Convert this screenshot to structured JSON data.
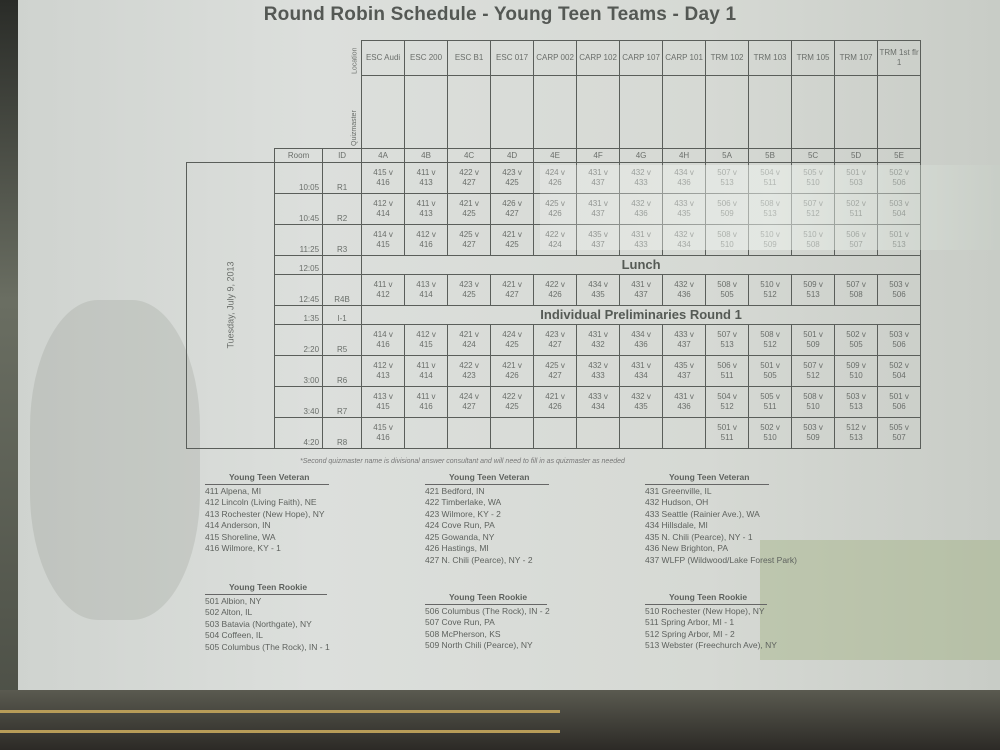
{
  "title": "Round Robin Schedule  - Young Teen Teams - Day 1",
  "corner_labels": {
    "location": "Location",
    "quizmaster": "Quizmaster",
    "room": "Room",
    "id": "ID"
  },
  "date_label": "Tuesday, July 9, 2013",
  "locations": [
    "ESC Audi",
    "ESC 200",
    "ESC B1",
    "ESC 017",
    "CARP 002",
    "CARP 102",
    "CARP 107",
    "CARP 101",
    "TRM 102",
    "TRM 103",
    "TRM 105",
    "TRM 107",
    "TRM 1st flr 1"
  ],
  "rooms": [
    "4A",
    "4B",
    "4C",
    "4D",
    "4E",
    "4F",
    "4G",
    "4H",
    "5A",
    "5B",
    "5C",
    "5D",
    "5E"
  ],
  "rows": [
    {
      "time": "10:05",
      "id": "R1",
      "games": [
        "415 v 416",
        "411 v 413",
        "422 v 427",
        "423 v 425",
        "424 v 426",
        "431 v 437",
        "432 v 433",
        "434 v 436",
        "507 v 513",
        "504 v 511",
        "505 v 510",
        "501 v 503",
        "502 v 506"
      ]
    },
    {
      "time": "10:45",
      "id": "R2",
      "games": [
        "412 v 414",
        "411 v 413",
        "421 v 425",
        "426 v 427",
        "425 v 426",
        "431 v 437",
        "432 v 436",
        "433 v 435",
        "506 v 509",
        "508 v 513",
        "507 v 512",
        "502 v 511",
        "503 v 504"
      ]
    },
    {
      "time": "11:25",
      "id": "R3",
      "games": [
        "414 v 415",
        "412 v 416",
        "425 v 427",
        "421 v 425",
        "422 v 424",
        "435 v 437",
        "431 v 433",
        "432 v 434",
        "508 v 510",
        "510 v 509",
        "510 v 508",
        "506 v 507",
        "501 v 513"
      ]
    },
    {
      "time": "12:05",
      "id": "",
      "band": "Lunch"
    },
    {
      "time": "12:45",
      "id": "R4B",
      "games": [
        "411 v 412",
        "413 v 414",
        "423 v 425",
        "421 v 427",
        "422 v 426",
        "434 v 435",
        "431 v 437",
        "432 v 436",
        "508 v 505",
        "510 v 512",
        "509 v 513",
        "507 v 508",
        "503 v 506"
      ]
    },
    {
      "time": "1:35",
      "id": "I-1",
      "band": "Individual Preliminaries Round 1"
    },
    {
      "time": "2:20",
      "id": "R5",
      "games": [
        "414 v 416",
        "412 v 415",
        "421 v 424",
        "424 v 425",
        "423 v 427",
        "431 v 432",
        "434 v 436",
        "433 v 437",
        "507 v 513",
        "508 v 512",
        "501 v 509",
        "502 v 505",
        "503 v 506"
      ]
    },
    {
      "time": "3:00",
      "id": "R6",
      "games": [
        "412 v 413",
        "411 v 414",
        "422 v 423",
        "421 v 426",
        "425 v 427",
        "432 v 433",
        "431 v 434",
        "435 v 437",
        "506 v 511",
        "501 v 505",
        "507 v 512",
        "509 v 510",
        "502 v 504"
      ]
    },
    {
      "time": "3:40",
      "id": "R7",
      "games": [
        "413 v 415",
        "411 v 416",
        "424 v 427",
        "422 v 425",
        "421 v 426",
        "433 v 434",
        "432 v 435",
        "431 v 436",
        "504 v 512",
        "505 v 511",
        "508 v 510",
        "503 v 513",
        "501 v 506"
      ]
    },
    {
      "time": "4:20",
      "id": "R8",
      "games": [
        "415 v 416",
        "",
        "",
        "",
        "",
        "",
        "",
        "",
        "501 v 511",
        "502 v 510",
        "503 v 509",
        "512 v 513",
        "505 v 507"
      ]
    }
  ],
  "footnote": "*Second quizmaster name is divisional answer consultant and will need to fill in as quizmaster as needed",
  "team_lists": [
    {
      "heading": "Young Teen Veteran",
      "teams": [
        "411 Alpena, MI",
        "412 Lincoln (Living Faith), NE",
        "413 Rochester (New Hope), NY",
        "414 Anderson, IN",
        "415 Shoreline, WA",
        "416 Wilmore, KY - 1"
      ]
    },
    {
      "heading": "Young Teen Veteran",
      "teams": [
        "421 Bedford, IN",
        "422 Timberlake, WA",
        "423 Wilmore, KY - 2",
        "424 Cove Run, PA",
        "425 Gowanda, NY",
        "426 Hastings, MI",
        "427 N. Chili (Pearce), NY - 2"
      ]
    },
    {
      "heading": "Young Teen Veteran",
      "teams": [
        "431 Greenville, IL",
        "432 Hudson, OH",
        "433 Seattle (Rainier Ave.), WA",
        "434 Hillsdale, MI",
        "435 N. Chili (Pearce), NY - 1",
        "436 New Brighton, PA",
        "437 WLFP (Wildwood/Lake Forest Park)"
      ]
    },
    {
      "heading": "Young Teen Rookie",
      "teams": [
        "501 Albion, NY",
        "502 Alton, IL",
        "503 Batavia (Northgate), NY",
        "504 Coffeen, IL",
        "505 Columbus (The Rock), IN - 1"
      ]
    },
    {
      "heading": "Young Teen Rookie",
      "teams": [
        "506 Columbus (The Rock), IN - 2",
        "507 Cove Run, PA",
        "508 McPherson, KS",
        "509 North Chili (Pearce), NY"
      ]
    },
    {
      "heading": "Young Teen Rookie",
      "teams": [
        "510 Rochester (New Hope), NY",
        "511 Spring Arbor, MI - 1",
        "512 Spring Arbor, MI - 2",
        "513 Webster (Freechurch Ave), NY"
      ]
    }
  ]
}
